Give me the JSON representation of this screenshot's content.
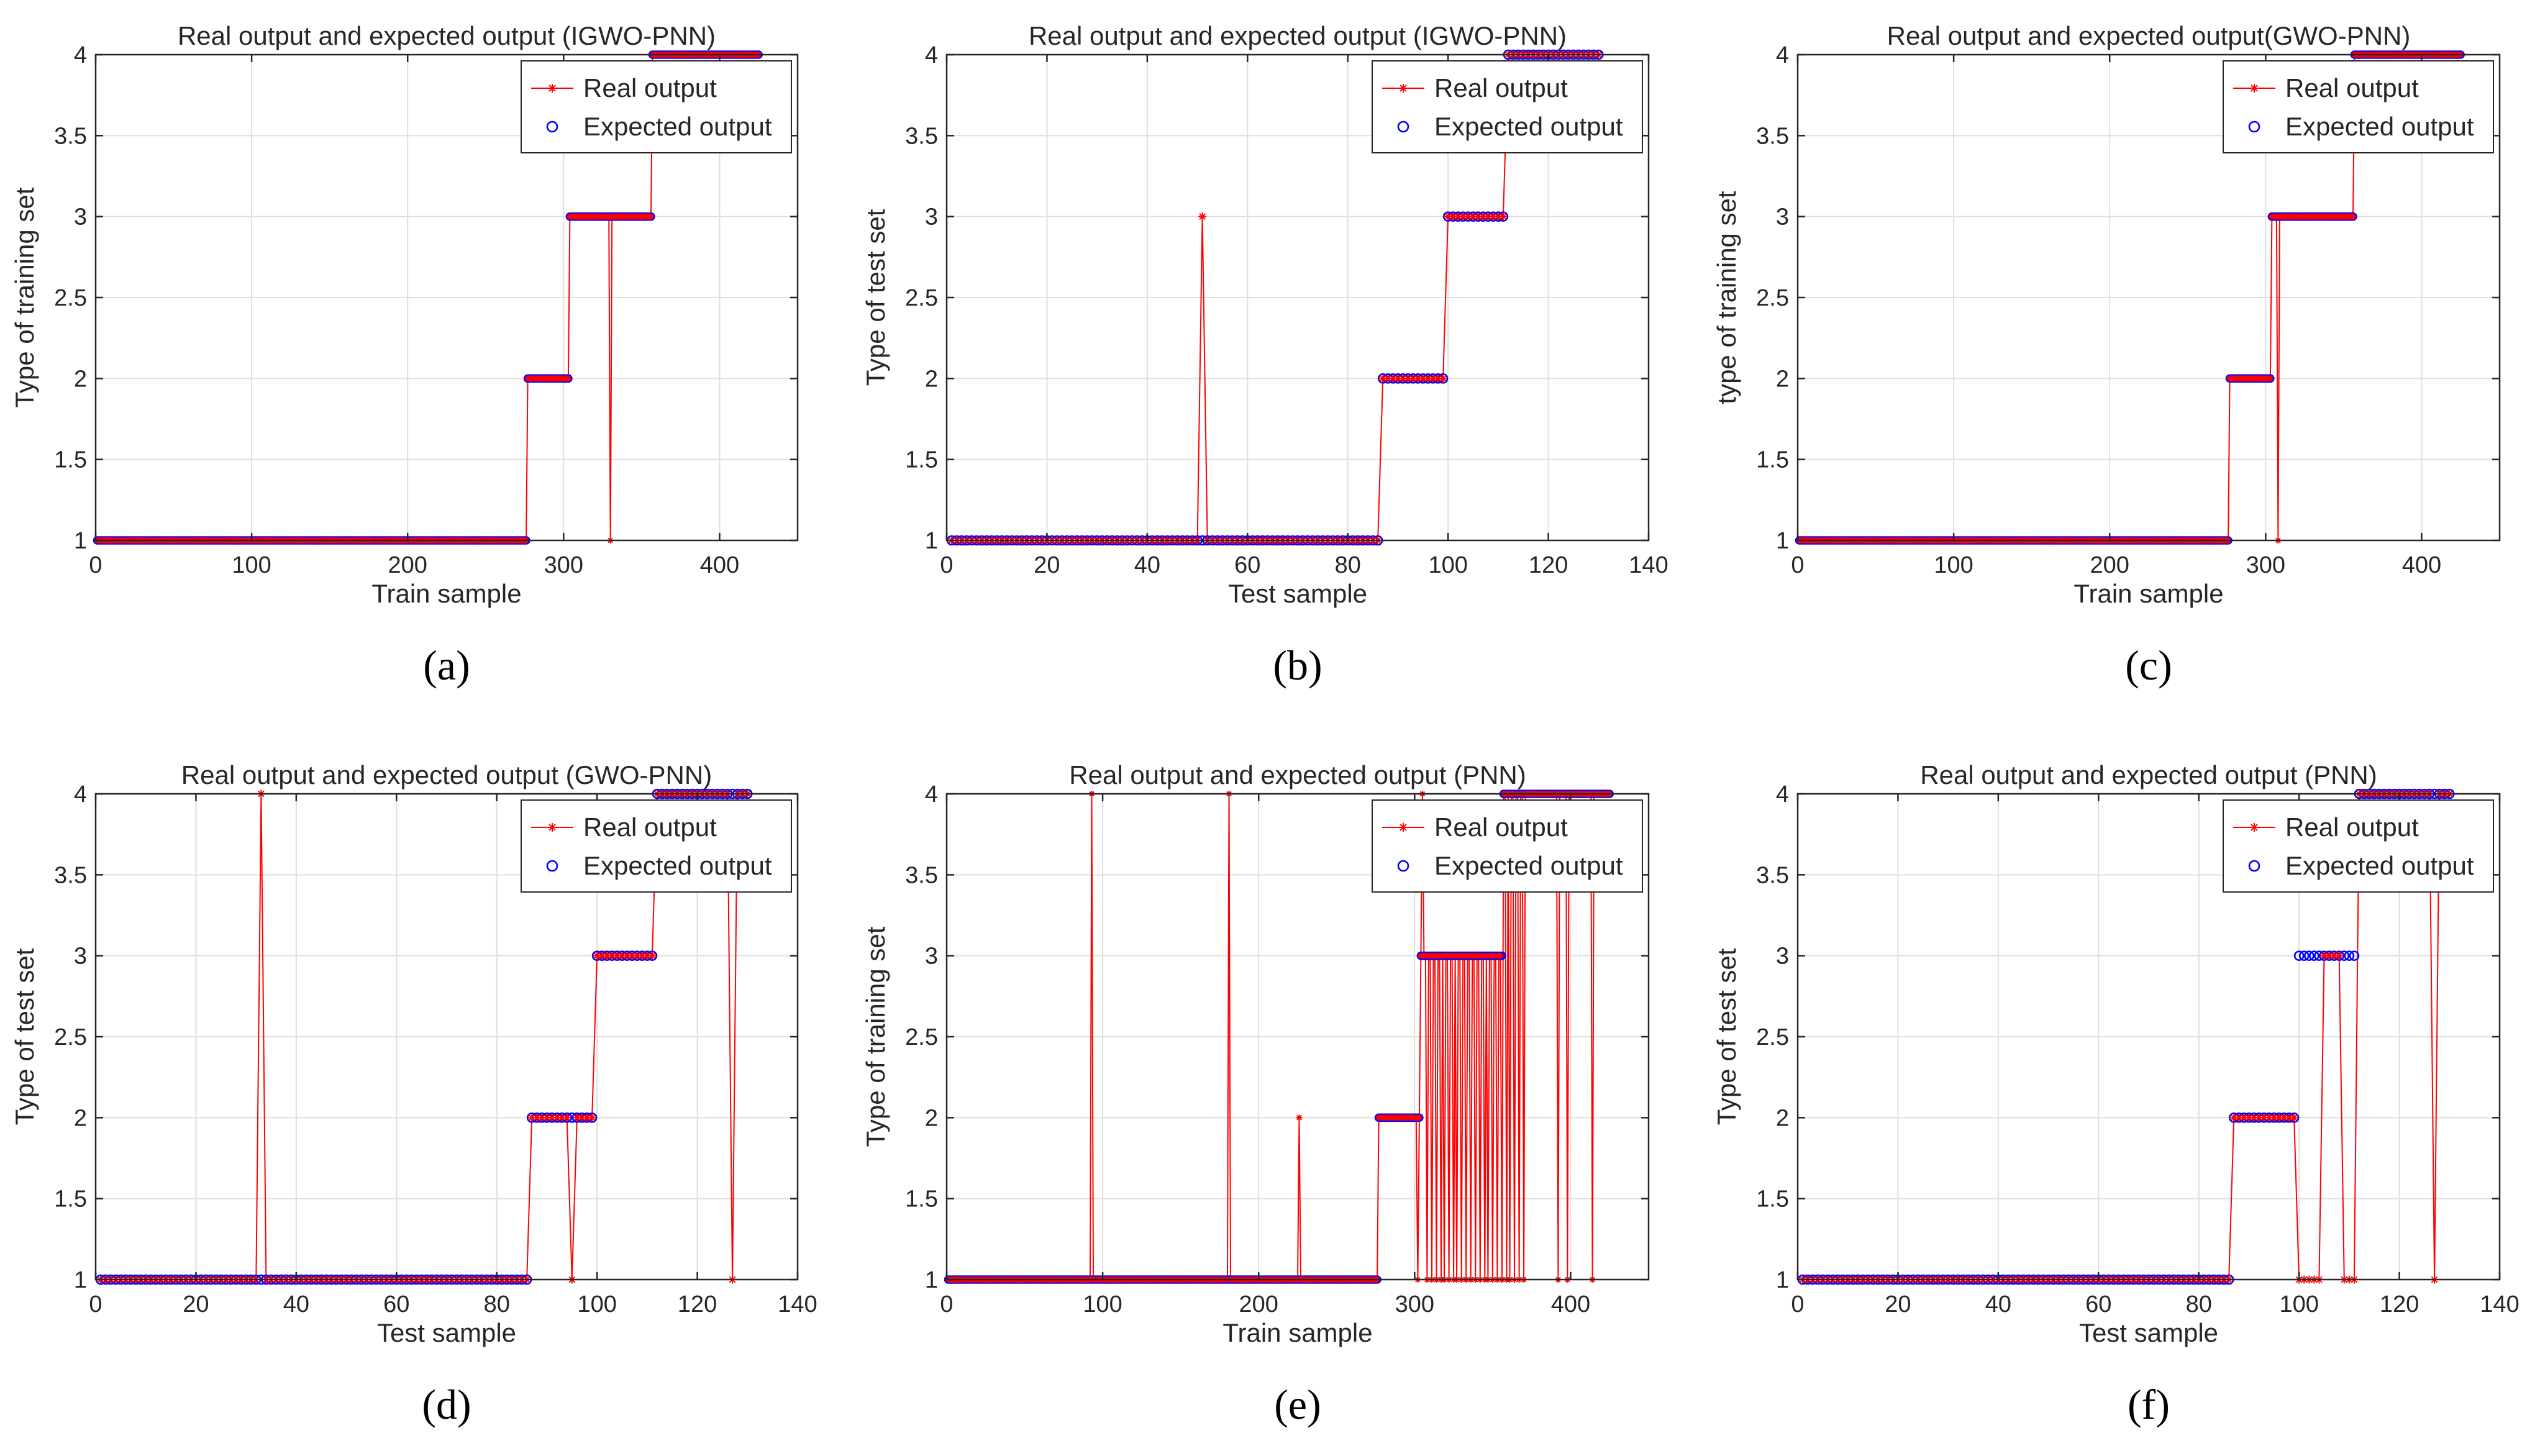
{
  "figure": {
    "legend": {
      "real": "Real output",
      "expected": "Expected output"
    },
    "colors": {
      "real": "#ff0000",
      "expected": "#0000ff",
      "axis": "#262626",
      "grid": "#dfdfdf"
    }
  },
  "chart_data": [
    {
      "id": "a",
      "panel_label": "(a)",
      "type": "line",
      "title": "Real output and expected output (IGWO-PNN)",
      "xlabel": "Train sample",
      "ylabel": "Type of training set",
      "xlim": [
        0,
        450
      ],
      "ylim": [
        1,
        4
      ],
      "xticks": [
        0,
        100,
        200,
        300,
        400
      ],
      "yticks": [
        1,
        1.5,
        2,
        2.5,
        3,
        3.5,
        4
      ],
      "n": 425,
      "class_ranges": [
        [
          1,
          276,
          1
        ],
        [
          277,
          303,
          2
        ],
        [
          304,
          356,
          3
        ],
        [
          357,
          425,
          4
        ]
      ],
      "real_errors": [
        [
          330,
          1
        ]
      ]
    },
    {
      "id": "b",
      "panel_label": "(b)",
      "type": "line",
      "title": "Real output and expected output (IGWO-PNN)",
      "xlabel": "Test sample",
      "ylabel": "Type of test set",
      "xlim": [
        0,
        140
      ],
      "ylim": [
        1,
        4
      ],
      "xticks": [
        0,
        20,
        40,
        60,
        80,
        100,
        120,
        140
      ],
      "yticks": [
        1,
        1.5,
        2,
        2.5,
        3,
        3.5,
        4
      ],
      "n": 130,
      "class_ranges": [
        [
          1,
          86,
          1
        ],
        [
          87,
          99,
          2
        ],
        [
          100,
          111,
          3
        ],
        [
          112,
          130,
          4
        ]
      ],
      "real_errors": [
        [
          51,
          3
        ]
      ]
    },
    {
      "id": "c",
      "panel_label": "(c)",
      "type": "line",
      "title": "Real output and expected output(GWO-PNN)",
      "xlabel": "Train sample",
      "ylabel": "type of training set",
      "xlim": [
        0,
        450
      ],
      "ylim": [
        1,
        4
      ],
      "xticks": [
        0,
        100,
        200,
        300,
        400
      ],
      "yticks": [
        1,
        1.5,
        2,
        2.5,
        3,
        3.5,
        4
      ],
      "n": 425,
      "class_ranges": [
        [
          1,
          276,
          1
        ],
        [
          277,
          303,
          2
        ],
        [
          304,
          356,
          3
        ],
        [
          357,
          425,
          4
        ]
      ],
      "real_errors": [
        [
          308,
          1
        ]
      ]
    },
    {
      "id": "d",
      "panel_label": "(d)",
      "type": "line",
      "title": "Real output and expected output (GWO-PNN)",
      "xlabel": "Test sample",
      "ylabel": "Type of test set",
      "xlim": [
        0,
        140
      ],
      "ylim": [
        1,
        4
      ],
      "xticks": [
        0,
        20,
        40,
        60,
        80,
        100,
        120,
        140
      ],
      "yticks": [
        1,
        1.5,
        2,
        2.5,
        3,
        3.5,
        4
      ],
      "n": 130,
      "class_ranges": [
        [
          1,
          86,
          1
        ],
        [
          87,
          99,
          2
        ],
        [
          100,
          111,
          3
        ],
        [
          112,
          130,
          4
        ]
      ],
      "real_errors": [
        [
          33,
          4
        ],
        [
          95,
          1
        ],
        [
          127,
          1
        ]
      ]
    },
    {
      "id": "e",
      "panel_label": "(e)",
      "type": "line",
      "title": "Real output and expected output (PNN)",
      "xlabel": "Train sample",
      "ylabel": "Type of training set",
      "xlim": [
        0,
        450
      ],
      "ylim": [
        1,
        4
      ],
      "xticks": [
        0,
        100,
        200,
        300,
        400
      ],
      "yticks": [
        1,
        1.5,
        2,
        2.5,
        3,
        3.5,
        4
      ],
      "n": 425,
      "class_ranges": [
        [
          1,
          276,
          1
        ],
        [
          277,
          303,
          2
        ],
        [
          304,
          356,
          3
        ],
        [
          357,
          425,
          4
        ]
      ],
      "real_errors": [
        [
          93,
          4
        ],
        [
          181,
          4
        ],
        [
          226,
          2
        ],
        [
          302,
          1
        ],
        [
          305,
          4
        ],
        [
          308,
          1
        ],
        [
          311,
          1
        ],
        [
          314,
          1
        ],
        [
          317,
          1
        ],
        [
          319,
          1
        ],
        [
          322,
          1
        ],
        [
          325,
          1
        ],
        [
          327,
          1
        ],
        [
          330,
          1
        ],
        [
          333,
          1
        ],
        [
          336,
          1
        ],
        [
          339,
          1
        ],
        [
          342,
          1
        ],
        [
          345,
          1
        ],
        [
          347,
          1
        ],
        [
          350,
          1
        ],
        [
          353,
          1
        ],
        [
          356,
          1
        ],
        [
          359,
          1
        ],
        [
          361,
          1
        ],
        [
          364,
          1
        ],
        [
          367,
          1
        ],
        [
          370,
          1
        ],
        [
          392,
          1
        ],
        [
          398,
          1
        ],
        [
          414,
          1
        ]
      ]
    },
    {
      "id": "f",
      "panel_label": "(f)",
      "type": "line",
      "title": "Real output and expected output (PNN)",
      "xlabel": "Test sample",
      "ylabel": "Type of test set",
      "xlim": [
        0,
        140
      ],
      "ylim": [
        1,
        4
      ],
      "xticks": [
        0,
        20,
        40,
        60,
        80,
        100,
        120,
        140
      ],
      "yticks": [
        1,
        1.5,
        2,
        2.5,
        3,
        3.5,
        4
      ],
      "n": 130,
      "class_ranges": [
        [
          1,
          86,
          1
        ],
        [
          87,
          99,
          2
        ],
        [
          100,
          111,
          3
        ],
        [
          112,
          130,
          4
        ]
      ],
      "real_errors": [
        [
          100,
          1
        ],
        [
          101,
          1
        ],
        [
          102,
          1
        ],
        [
          103,
          1
        ],
        [
          104,
          1
        ],
        [
          109,
          1
        ],
        [
          110,
          1
        ],
        [
          111,
          1
        ],
        [
          127,
          1
        ]
      ]
    }
  ]
}
